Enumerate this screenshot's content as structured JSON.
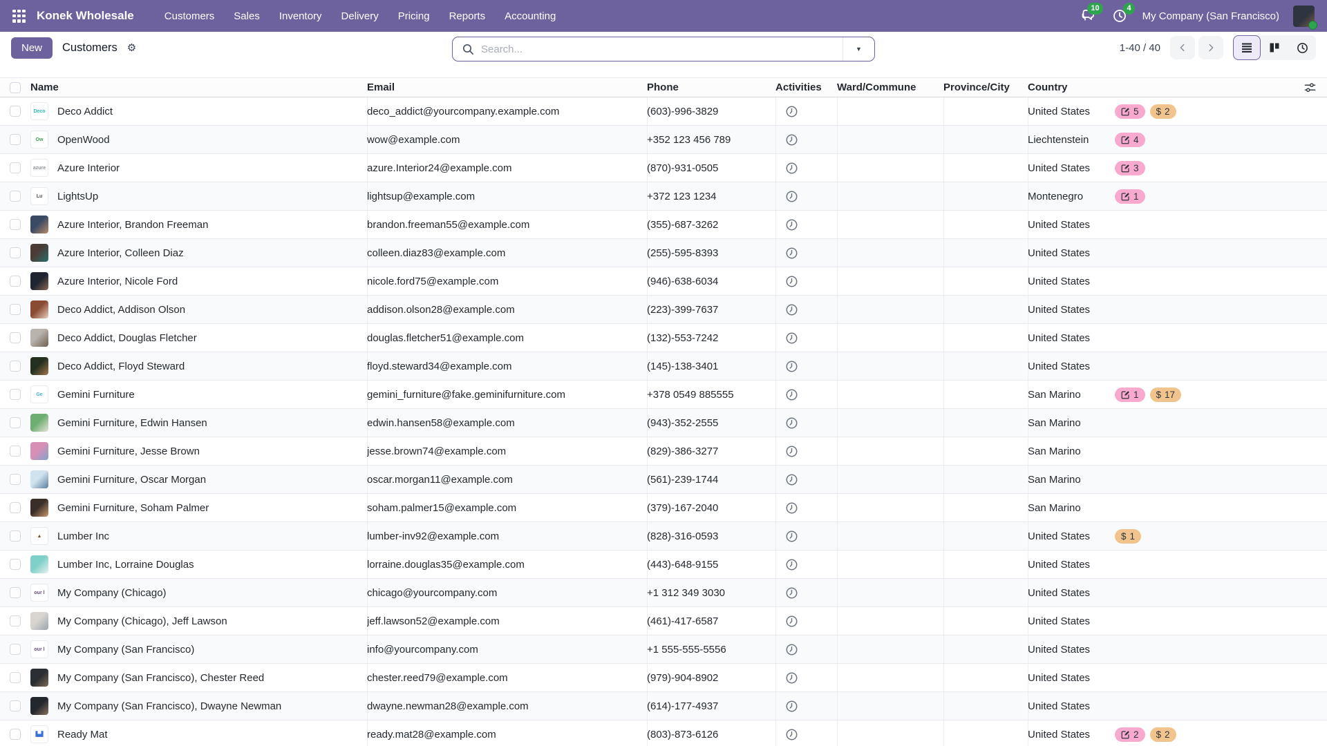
{
  "nav": {
    "brand": "Konek Wholesale",
    "menus": [
      "Customers",
      "Sales",
      "Inventory",
      "Delivery",
      "Pricing",
      "Reports",
      "Accounting"
    ],
    "messages_badge": "10",
    "activities_badge": "4",
    "company_name": "My Company (San Francisco)"
  },
  "control_panel": {
    "new_button_label": "New",
    "title": "Customers",
    "search_placeholder": "Search...",
    "pager_text": "1-40 / 40"
  },
  "colors": {
    "navbar_purple": "#6e629e",
    "accent_purple": "#6e629e",
    "badge_pink": "#f7a9ce",
    "badge_orange": "#f2c48d",
    "notification_green": "#2ea44f"
  },
  "table": {
    "headers": {
      "name": "Name",
      "email": "Email",
      "phone": "Phone",
      "activities": "Activities",
      "ward": "Ward/Commune",
      "province": "Province/City",
      "country": "Country"
    },
    "rows": [
      {
        "name": "Deco Addict",
        "email": "deco_addict@yourcompany.example.com",
        "phone": "(603)-996-3829",
        "country": "United States",
        "badges": [
          {
            "type": "edit",
            "value": "5"
          },
          {
            "type": "dollar",
            "value": "2"
          }
        ],
        "avatar": {
          "kind": "logo",
          "text": "Deco",
          "color": "#2dbcb5"
        }
      },
      {
        "name": "OpenWood",
        "email": "wow@example.com",
        "phone": "+352 123 456 789",
        "country": "Liechtenstein",
        "badges": [
          {
            "type": "edit",
            "value": "4"
          }
        ],
        "avatar": {
          "kind": "logo",
          "text": "Ow",
          "color": "#3f9e4f"
        }
      },
      {
        "name": "Azure Interior",
        "email": "azure.Interior24@example.com",
        "phone": "(870)-931-0505",
        "country": "United States",
        "badges": [
          {
            "type": "edit",
            "value": "3"
          }
        ],
        "avatar": {
          "kind": "logo",
          "text": "azure",
          "color": "#8d9399"
        }
      },
      {
        "name": "LightsUp",
        "email": "lightsup@example.com",
        "phone": "+372 123 1234",
        "country": "Montenegro",
        "badges": [
          {
            "type": "edit",
            "value": "1"
          }
        ],
        "avatar": {
          "kind": "logo",
          "text": "Lu",
          "color": "#4a4f57"
        }
      },
      {
        "name": "Azure Interior, Brandon Freeman",
        "email": "brandon.freeman55@example.com",
        "phone": "(355)-687-3262",
        "country": "United States",
        "badges": [],
        "avatar": {
          "kind": "photo",
          "bg": "linear-gradient(135deg,#3b4a63 45%,#b98a6a)"
        }
      },
      {
        "name": "Azure Interior, Colleen Diaz",
        "email": "colleen.diaz83@example.com",
        "phone": "(255)-595-8393",
        "country": "United States",
        "badges": [],
        "avatar": {
          "kind": "photo",
          "bg": "linear-gradient(135deg,#4a3b35 40%,#2e6e6a)"
        }
      },
      {
        "name": "Azure Interior, Nicole Ford",
        "email": "nicole.ford75@example.com",
        "phone": "(946)-638-6034",
        "country": "United States",
        "badges": [],
        "avatar": {
          "kind": "photo",
          "bg": "linear-gradient(135deg,#1f2430 50%,#8a6a56)"
        }
      },
      {
        "name": "Deco Addict, Addison Olson",
        "email": "addison.olson28@example.com",
        "phone": "(223)-399-7637",
        "country": "United States",
        "badges": [],
        "avatar": {
          "kind": "photo",
          "bg": "linear-gradient(135deg,#8a4b33 45%,#e8cfc0)"
        }
      },
      {
        "name": "Deco Addict, Douglas Fletcher",
        "email": "douglas.fletcher51@example.com",
        "phone": "(132)-553-7242",
        "country": "United States",
        "badges": [],
        "avatar": {
          "kind": "photo",
          "bg": "linear-gradient(135deg,#b9b3ad 40%,#6e5f52)"
        }
      },
      {
        "name": "Deco Addict, Floyd Steward",
        "email": "floyd.steward34@example.com",
        "phone": "(145)-138-3401",
        "country": "United States",
        "badges": [],
        "avatar": {
          "kind": "photo",
          "bg": "linear-gradient(135deg,#23301f 45%,#a3764e)"
        }
      },
      {
        "name": "Gemini Furniture",
        "email": "gemini_furniture@fake.geminifurniture.com",
        "phone": "+378 0549 885555",
        "country": "San Marino",
        "badges": [
          {
            "type": "edit",
            "value": "1"
          },
          {
            "type": "dollar",
            "value": "17"
          }
        ],
        "avatar": {
          "kind": "logo",
          "text": "Ge",
          "color": "#45b0dd"
        }
      },
      {
        "name": "Gemini Furniture, Edwin Hansen",
        "email": "edwin.hansen58@example.com",
        "phone": "(943)-352-2555",
        "country": "San Marino",
        "badges": [],
        "avatar": {
          "kind": "photo",
          "bg": "linear-gradient(135deg,#6fae71 45%,#e8e4da)"
        }
      },
      {
        "name": "Gemini Furniture, Jesse Brown",
        "email": "jesse.brown74@example.com",
        "phone": "(829)-386-3277",
        "country": "San Marino",
        "badges": [],
        "avatar": {
          "kind": "photo",
          "bg": "linear-gradient(135deg,#d88fb6 45%,#7fa3c8)"
        }
      },
      {
        "name": "Gemini Furniture, Oscar Morgan",
        "email": "oscar.morgan11@example.com",
        "phone": "(561)-239-1744",
        "country": "San Marino",
        "badges": [],
        "avatar": {
          "kind": "photo",
          "bg": "linear-gradient(135deg,#cfe2ee 45%,#5a7f9c)"
        }
      },
      {
        "name": "Gemini Furniture, Soham Palmer",
        "email": "soham.palmer15@example.com",
        "phone": "(379)-167-2040",
        "country": "San Marino",
        "badges": [],
        "avatar": {
          "kind": "photo",
          "bg": "linear-gradient(135deg,#3a2f28 45%,#c89a6e)"
        }
      },
      {
        "name": "Lumber Inc",
        "email": "lumber-inv92@example.com",
        "phone": "(828)-316-0593",
        "country": "United States",
        "badges": [
          {
            "type": "dollar",
            "value": "1"
          }
        ],
        "avatar": {
          "kind": "logo",
          "text": "▲",
          "color": "#7a4f22"
        }
      },
      {
        "name": "Lumber Inc, Lorraine Douglas",
        "email": "lorraine.douglas35@example.com",
        "phone": "(443)-648-9155",
        "country": "United States",
        "badges": [],
        "avatar": {
          "kind": "photo",
          "bg": "linear-gradient(135deg,#7fd0c9 45%,#e8f0ee)"
        }
      },
      {
        "name": "My Company (Chicago)",
        "email": "chicago@yourcompany.com",
        "phone": "+1 312 349 3030",
        "country": "United States",
        "badges": [],
        "avatar": {
          "kind": "logo",
          "text": "our l",
          "color": "#6a4a7a"
        }
      },
      {
        "name": "My Company (Chicago), Jeff Lawson",
        "email": "jeff.lawson52@example.com",
        "phone": "(461)-417-6587",
        "country": "United States",
        "badges": [],
        "avatar": {
          "kind": "photo",
          "bg": "linear-gradient(135deg,#d8d4cf 45%,#9aa3ad)"
        }
      },
      {
        "name": "My Company (San Francisco)",
        "email": "info@yourcompany.com",
        "phone": "+1 555-555-5556",
        "country": "United States",
        "badges": [],
        "avatar": {
          "kind": "logo",
          "text": "our l",
          "color": "#6a4a7a"
        }
      },
      {
        "name": "My Company (San Francisco), Chester Reed",
        "email": "chester.reed79@example.com",
        "phone": "(979)-904-8902",
        "country": "United States",
        "badges": [],
        "avatar": {
          "kind": "photo",
          "bg": "linear-gradient(135deg,#2b2f33 50%,#7f6a58)"
        }
      },
      {
        "name": "My Company (San Francisco), Dwayne Newman",
        "email": "dwayne.newman28@example.com",
        "phone": "(614)-177-4937",
        "country": "United States",
        "badges": [],
        "avatar": {
          "kind": "photo",
          "bg": "linear-gradient(135deg,#23272e 50%,#8a7360)"
        }
      },
      {
        "name": "Ready Mat",
        "email": "ready.mat28@example.com",
        "phone": "(803)-873-6126",
        "country": "United States",
        "badges": [
          {
            "type": "edit",
            "value": "2"
          },
          {
            "type": "dollar",
            "value": "2"
          }
        ],
        "avatar": {
          "kind": "logo",
          "text": "▙▟",
          "color": "#3a6fd8"
        }
      }
    ]
  }
}
